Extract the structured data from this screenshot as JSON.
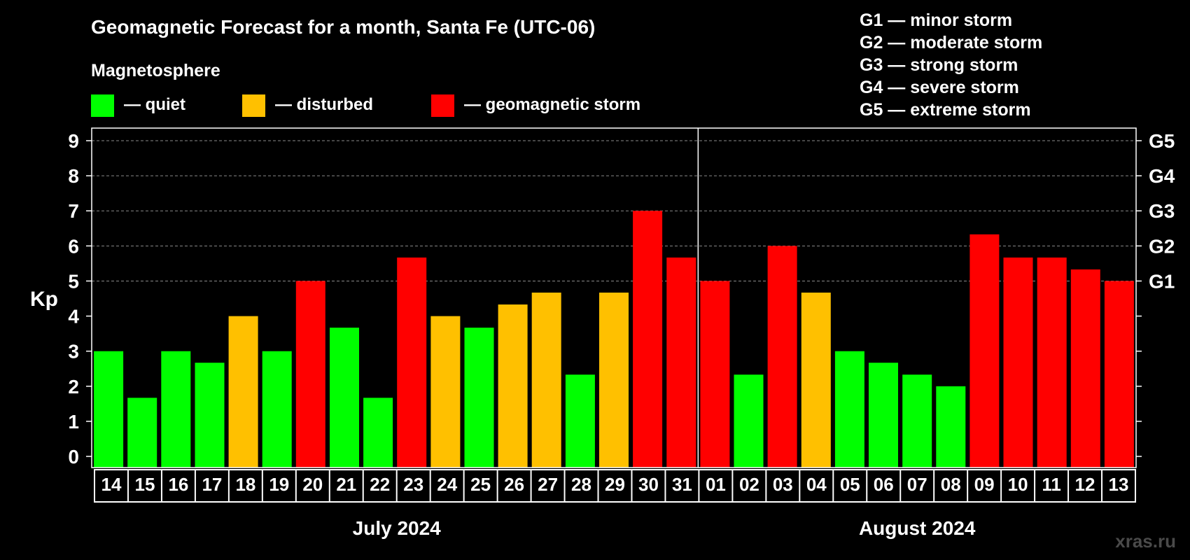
{
  "chart_data": {
    "type": "bar",
    "title": "Geomagnetic Forecast for a month, Santa Fe (UTC-06)",
    "ylabel": "Kp",
    "ylim": [
      0,
      9
    ],
    "yticks": [
      "0",
      "1",
      "2",
      "3",
      "4",
      "5",
      "6",
      "7",
      "8",
      "9"
    ],
    "grid": "dashed at 5, 6, 7, 8, 9",
    "legend": {
      "title": "Magnetosphere",
      "items": [
        {
          "label": "— quiet",
          "color": "#00ff00"
        },
        {
          "label": "— disturbed",
          "color": "#ffc000"
        },
        {
          "label": "— geomagnetic storm",
          "color": "#ff0000"
        }
      ]
    },
    "storm_legend": [
      "G1 — minor storm",
      "G2 — moderate storm",
      "G3 — strong storm",
      "G4 — severe storm",
      "G5 — extreme storm"
    ],
    "right_axis": [
      {
        "kp": 5,
        "label": "G1"
      },
      {
        "kp": 6,
        "label": "G2"
      },
      {
        "kp": 7,
        "label": "G3"
      },
      {
        "kp": 8,
        "label": "G4"
      },
      {
        "kp": 9,
        "label": "G5"
      }
    ],
    "categories": [
      "14",
      "15",
      "16",
      "17",
      "18",
      "19",
      "20",
      "21",
      "22",
      "23",
      "24",
      "25",
      "26",
      "27",
      "28",
      "29",
      "30",
      "31",
      "01",
      "02",
      "03",
      "04",
      "05",
      "06",
      "07",
      "08",
      "09",
      "10",
      "11",
      "12",
      "13"
    ],
    "values": [
      3.0,
      1.67,
      3.0,
      2.67,
      4.0,
      3.0,
      5.0,
      3.67,
      1.67,
      5.67,
      4.0,
      3.67,
      4.33,
      4.67,
      2.33,
      4.67,
      7.0,
      5.67,
      5.0,
      2.33,
      6.0,
      4.67,
      3.0,
      2.67,
      2.33,
      2.0,
      6.33,
      5.67,
      5.67,
      5.33,
      5.0
    ],
    "status": [
      "quiet",
      "quiet",
      "quiet",
      "quiet",
      "disturbed",
      "quiet",
      "storm",
      "quiet",
      "quiet",
      "storm",
      "disturbed",
      "quiet",
      "disturbed",
      "disturbed",
      "quiet",
      "disturbed",
      "storm",
      "storm",
      "storm",
      "quiet",
      "storm",
      "disturbed",
      "quiet",
      "quiet",
      "quiet",
      "quiet",
      "storm",
      "storm",
      "storm",
      "storm",
      "storm"
    ],
    "status_colors": {
      "quiet": "#00ff00",
      "disturbed": "#ffc000",
      "storm": "#ff0000"
    },
    "months": [
      {
        "label": "July 2024",
        "start": 0,
        "count": 18
      },
      {
        "label": "August 2024",
        "start": 18,
        "count": 13
      }
    ]
  },
  "watermark": "xras.ru"
}
